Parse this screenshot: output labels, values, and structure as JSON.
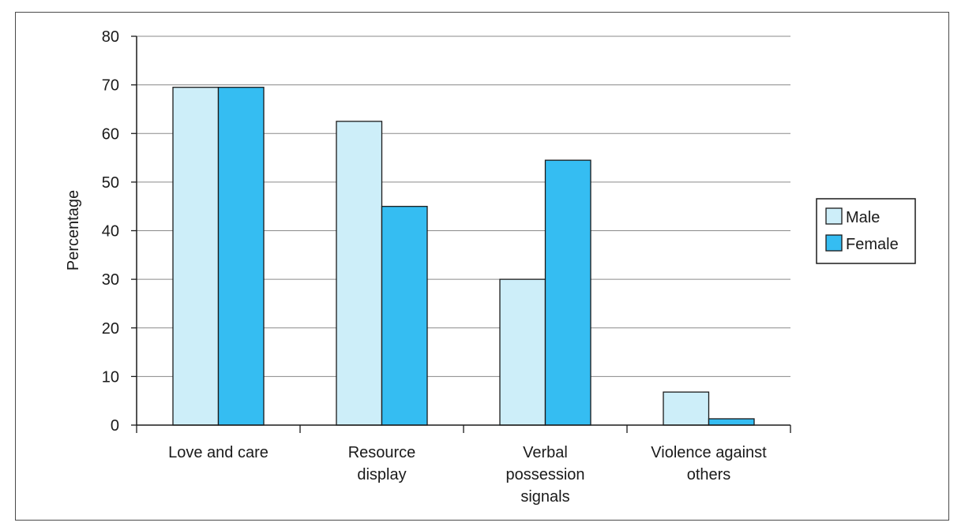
{
  "chart_data": {
    "type": "bar",
    "title": "",
    "xlabel": "",
    "ylabel": "Percentage",
    "ylim": [
      0,
      80
    ],
    "yticks": [
      0,
      10,
      20,
      30,
      40,
      50,
      60,
      70,
      80
    ],
    "grid": true,
    "legend_position": "right",
    "categories": [
      [
        "Love and care"
      ],
      [
        "Resource",
        "display"
      ],
      [
        "Verbal",
        "possession",
        "signals"
      ],
      [
        "Violence against",
        "others"
      ]
    ],
    "series": [
      {
        "name": "Male",
        "color": "#cdeef9",
        "values": [
          69.5,
          62.5,
          30,
          6.8
        ]
      },
      {
        "name": "Female",
        "color": "#35bdf2",
        "values": [
          69.5,
          45,
          54.5,
          1.3
        ]
      }
    ]
  }
}
